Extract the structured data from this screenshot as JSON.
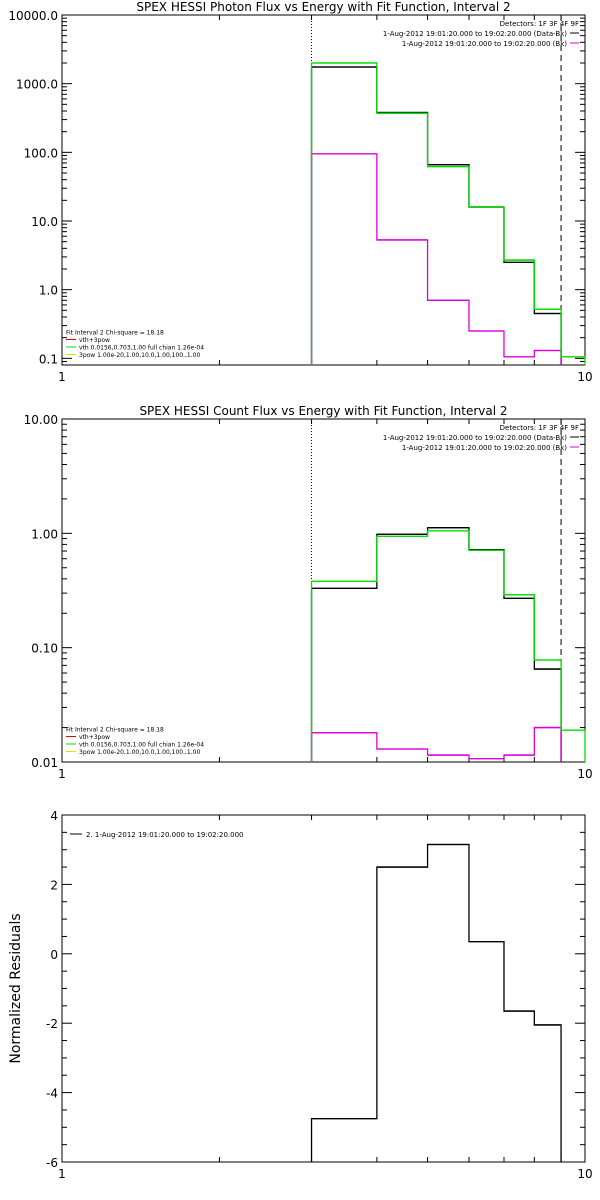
{
  "chart_data": [
    {
      "type": "line",
      "title": "SPEX HESSI Photon Flux vs Energy with Fit Function, Interval 2",
      "xlabel": "",
      "ylabel": "",
      "xscale": "log",
      "yscale": "log",
      "xlim": [
        1,
        10
      ],
      "ylim": [
        0.08,
        10000
      ],
      "xtick_labels": [
        "1",
        "10"
      ],
      "ytick_values": [
        0.1,
        1,
        10,
        100,
        1000,
        10000
      ],
      "ytick_labels": [
        "0.1",
        "1.0",
        "10.0",
        "100.0",
        "1000.0",
        "10000.0"
      ],
      "bin_edges": [
        3.0,
        4.0,
        5.0,
        6.0,
        7.0,
        8.0,
        9.0,
        10.0
      ],
      "series": [
        {
          "name": "1-Aug-2012 19:01:20.000 to 19:02:20.000 (Data-Bk)",
          "color": "#000000",
          "values": [
            1750,
            380,
            66,
            16,
            2.5,
            0.45
          ]
        },
        {
          "name": "vth+3pow",
          "color": "#00dd00",
          "values": [
            2000,
            370,
            62,
            16,
            2.7,
            0.52,
            0.105
          ]
        },
        {
          "name": "1-Aug-2012 19:01:20.000 to 19:02:20.000 (Bk)",
          "color": "#dd00dd",
          "values": [
            95,
            5.3,
            0.7,
            0.25,
            0.105,
            0.13
          ]
        }
      ],
      "vertical_markers": [
        {
          "x": 3.0,
          "style": "dotted"
        },
        {
          "x": 9.0,
          "style": "dashed"
        }
      ],
      "detectors": "Detectors: 1F 3F 4F 9F",
      "legend_top": [
        {
          "text": "1-Aug-2012 19:01:20.000 to 19:02:20.000 (Data-Bk)",
          "color": "#000000"
        },
        {
          "text": "1-Aug-2012 19:01:20.000 to 19:02:20.000 (Bk)",
          "color": "#dd00dd"
        }
      ],
      "fit_legend": [
        {
          "text": "Fit Interval 2   Chi-square = 18.18",
          "color": "#000000",
          "line": false
        },
        {
          "text": "vth+3pow",
          "color": "#dd0000",
          "line": true
        },
        {
          "text": "vth 0.0156,0.703,1.00  full chian 1.26e-04",
          "color": "#00dd00",
          "line": true
        },
        {
          "text": "3pow 1.00e-20,1.00,10.0,1.00,100.,1.00",
          "color": "#dddd00",
          "line": true
        }
      ]
    },
    {
      "type": "line",
      "title": "SPEX HESSI Count Flux vs Energy with Fit Function, Interval 2",
      "xlabel": "",
      "ylabel": "",
      "xscale": "log",
      "yscale": "log",
      "xlim": [
        1,
        10
      ],
      "ylim": [
        0.01,
        10
      ],
      "xtick_labels": [
        "1",
        "10"
      ],
      "ytick_values": [
        0.01,
        0.1,
        1,
        10
      ],
      "ytick_labels": [
        "0.01",
        "0.10",
        "1.00",
        "10.00"
      ],
      "bin_edges": [
        3.0,
        4.0,
        5.0,
        6.0,
        7.0,
        8.0,
        9.0,
        10.0
      ],
      "series": [
        {
          "name": "1-Aug-2012 19:01:20.000 to 19:02:20.000 (Data-Bk)",
          "color": "#000000",
          "values": [
            0.33,
            0.98,
            1.12,
            0.72,
            0.27,
            0.065
          ]
        },
        {
          "name": "vth+3pow",
          "color": "#00dd00",
          "values": [
            0.38,
            0.94,
            1.05,
            0.71,
            0.29,
            0.078,
            0.019
          ]
        },
        {
          "name": "1-Aug-2012 19:01:20.000 to 19:02:20.000 (Bk)",
          "color": "#dd00dd",
          "values": [
            0.018,
            0.013,
            0.0115,
            0.0107,
            0.0115,
            0.02
          ]
        }
      ],
      "vertical_markers": [
        {
          "x": 3.0,
          "style": "dotted"
        },
        {
          "x": 9.0,
          "style": "dashed"
        }
      ],
      "detectors": "Detectors: 1F 3F 4F 9F",
      "legend_top": [
        {
          "text": "1-Aug-2012 19:01:20.000 to 19:02:20.000 (Data-Bk)",
          "color": "#000000"
        },
        {
          "text": "1-Aug-2012 19:01:20.000 to 19:02:20.000 (Bk)",
          "color": "#dd00dd"
        }
      ],
      "fit_legend": [
        {
          "text": "Fit Interval 2   Chi-square = 18.18",
          "color": "#000000",
          "line": false
        },
        {
          "text": "vth+3pow",
          "color": "#dd0000",
          "line": true
        },
        {
          "text": "vth 0.0156,0.703,1.00  full chian 1.26e-04",
          "color": "#00dd00",
          "line": true
        },
        {
          "text": "3pow 1.00e-20,1.00,10.0,1.00,100.,1.00",
          "color": "#dddd00",
          "line": true
        }
      ]
    },
    {
      "type": "line",
      "title": "",
      "xlabel": "",
      "ylabel": "Normalized Residuals",
      "xscale": "log",
      "yscale": "linear",
      "xlim": [
        1,
        10
      ],
      "ylim": [
        -6,
        4
      ],
      "xtick_labels": [
        "1",
        "10"
      ],
      "ytick_values": [
        -6,
        -4,
        -2,
        0,
        2,
        4
      ],
      "ytick_labels": [
        "-6",
        "-4",
        "-2",
        "0",
        "2",
        "4"
      ],
      "bin_edges": [
        3.0,
        4.0,
        5.0,
        6.0,
        7.0,
        8.0,
        9.0
      ],
      "series": [
        {
          "name": "2. 1-Aug-2012 19:01:20.000 to 19:02:20.000",
          "color": "#000000",
          "values": [
            -4.75,
            2.5,
            3.15,
            0.35,
            -1.65,
            -2.05
          ]
        }
      ],
      "vertical_markers": [],
      "legend_top": [
        {
          "text": "2. 1-Aug-2012 19:01:20.000 to 19:02:20.000",
          "color": "#000000"
        }
      ],
      "fit_legend": []
    }
  ]
}
